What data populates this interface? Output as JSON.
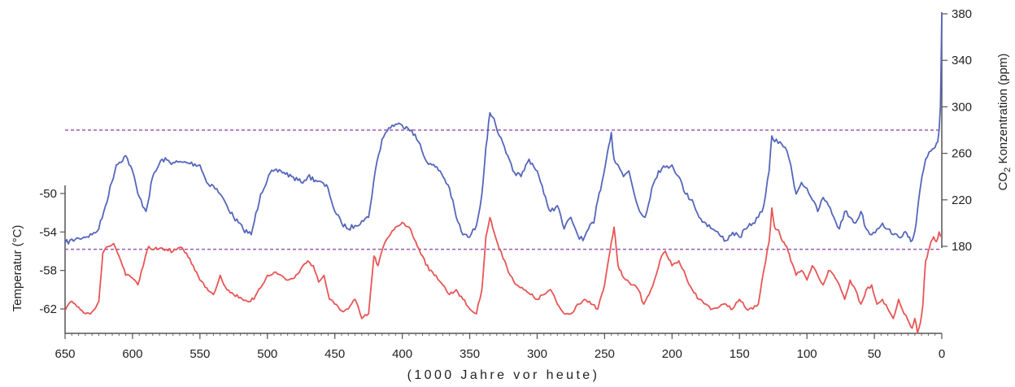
{
  "chart_data": {
    "type": "line",
    "title": "",
    "xlabel": "(1000 Jahre vor heute)",
    "x_range": [
      650,
      0
    ],
    "x_ticks": [
      650,
      600,
      550,
      500,
      450,
      400,
      350,
      300,
      250,
      200,
      150,
      100,
      50,
      0
    ],
    "left_axis": {
      "label": "Temperatur (°C)",
      "range": [
        -65,
        -50
      ],
      "ticks": [
        -50,
        -54,
        -58,
        -62
      ],
      "tick_labels": [
        "-50",
        "-54",
        "-58",
        "-62"
      ]
    },
    "right_axis": {
      "label_parts": [
        "CO",
        "2",
        " Konzentration (ppm)"
      ],
      "range": [
        180,
        380
      ],
      "ticks": [
        380,
        340,
        300,
        260,
        220,
        180
      ],
      "tick_labels": [
        "380",
        "340",
        "300",
        "260",
        "220",
        "180"
      ]
    },
    "reference_lines": {
      "co2_ppm": 280,
      "temperature_c": -55.8
    },
    "series": [
      {
        "axis": "right",
        "color": "#5566bb",
        "x": [
          650,
          640,
          630,
          625,
          620,
          612,
          605,
          600,
          596,
          590,
          585,
          578,
          570,
          560,
          550,
          545,
          540,
          535,
          530,
          525,
          518,
          512,
          505,
          498,
          490,
          482,
          475,
          470,
          462,
          455,
          450,
          445,
          440,
          435,
          430,
          425,
          420,
          415,
          410,
          405,
          400,
          397,
          393,
          388,
          383,
          378,
          372,
          365,
          360,
          355,
          350,
          345,
          341,
          338,
          335,
          332,
          328,
          323,
          318,
          312,
          306,
          300,
          295,
          290,
          285,
          280,
          275,
          270,
          266,
          262,
          258,
          255,
          252,
          248,
          245,
          243,
          240,
          236,
          232,
          228,
          224,
          220,
          215,
          210,
          205,
          200,
          195,
          190,
          185,
          180,
          175,
          170,
          165,
          160,
          155,
          150,
          145,
          140,
          136,
          132,
          128,
          126,
          124,
          120,
          116,
          112,
          108,
          104,
          100,
          96,
          92,
          88,
          84,
          80,
          76,
          72,
          68,
          64,
          60,
          56,
          52,
          48,
          44,
          40,
          36,
          32,
          28,
          25,
          22,
          19,
          16,
          12,
          8,
          5,
          3,
          2,
          1,
          0.5,
          0
        ],
        "y": [
          183,
          187,
          190,
          195,
          215,
          250,
          258,
          245,
          225,
          210,
          240,
          255,
          252,
          252,
          250,
          235,
          232,
          225,
          215,
          205,
          195,
          190,
          225,
          243,
          245,
          240,
          235,
          240,
          236,
          230,
          210,
          200,
          195,
          198,
          202,
          205,
          245,
          272,
          282,
          285,
          284,
          283,
          280,
          270,
          255,
          250,
          245,
          230,
          205,
          190,
          188,
          198,
          225,
          265,
          295,
          290,
          275,
          260,
          245,
          240,
          255,
          245,
          225,
          210,
          215,
          195,
          205,
          190,
          185,
          195,
          200,
          220,
          235,
          260,
          278,
          255,
          250,
          240,
          245,
          225,
          210,
          205,
          230,
          245,
          248,
          250,
          240,
          225,
          220,
          205,
          200,
          195,
          190,
          185,
          192,
          188,
          195,
          200,
          205,
          215,
          245,
          275,
          270,
          270,
          265,
          250,
          225,
          235,
          230,
          220,
          210,
          222,
          215,
          205,
          195,
          210,
          205,
          200,
          210,
          195,
          190,
          195,
          200,
          195,
          190,
          188,
          192,
          188,
          185,
          200,
          230,
          255,
          262,
          265,
          270,
          280,
          300,
          340,
          380
        ]
      },
      {
        "axis": "left",
        "color": "#e85555",
        "x": [
          650,
          645,
          640,
          635,
          630,
          625,
          622,
          618,
          614,
          610,
          605,
          600,
          596,
          592,
          588,
          584,
          580,
          575,
          570,
          565,
          560,
          555,
          550,
          545,
          540,
          535,
          530,
          525,
          520,
          515,
          510,
          505,
          500,
          495,
          490,
          485,
          480,
          475,
          470,
          466,
          462,
          458,
          454,
          450,
          445,
          440,
          435,
          430,
          425,
          421,
          418,
          414,
          410,
          405,
          400,
          395,
          390,
          385,
          380,
          375,
          370,
          365,
          360,
          355,
          350,
          345,
          341,
          338,
          335,
          332,
          328,
          324,
          320,
          315,
          310,
          305,
          300,
          295,
          290,
          285,
          280,
          275,
          270,
          265,
          260,
          255,
          250,
          246,
          243,
          240,
          237,
          233,
          229,
          225,
          221,
          217,
          213,
          209,
          205,
          200,
          195,
          190,
          185,
          180,
          175,
          170,
          165,
          160,
          155,
          150,
          145,
          140,
          136,
          132,
          128,
          126,
          124,
          121,
          118,
          115,
          112,
          108,
          104,
          100,
          96,
          92,
          88,
          84,
          80,
          76,
          72,
          68,
          64,
          60,
          56,
          52,
          48,
          44,
          40,
          36,
          32,
          28,
          24,
          22,
          20,
          18,
          16,
          14,
          12,
          10,
          8,
          6,
          4,
          2,
          0
        ],
        "y": [
          -62.2,
          -61.2,
          -61.8,
          -62.5,
          -62.3,
          -61.2,
          -56.2,
          -55.5,
          -55.2,
          -56.5,
          -58.5,
          -58.8,
          -59.5,
          -57.5,
          -55.5,
          -55.8,
          -55.7,
          -55.8,
          -56.0,
          -55.6,
          -56.2,
          -57.5,
          -59.0,
          -59.8,
          -60.5,
          -58.5,
          -60.0,
          -60.5,
          -60.8,
          -61.2,
          -61.0,
          -59.8,
          -58.5,
          -58.2,
          -58.5,
          -59.0,
          -58.8,
          -57.8,
          -57.0,
          -57.5,
          -59.2,
          -58.5,
          -61.0,
          -61.5,
          -62.2,
          -62.0,
          -61.0,
          -63.0,
          -62.5,
          -56.5,
          -57.5,
          -55.5,
          -54.5,
          -53.5,
          -53.0,
          -53.5,
          -55.0,
          -56.5,
          -58.0,
          -58.5,
          -59.5,
          -60.5,
          -60.0,
          -61.0,
          -62.0,
          -62.5,
          -60.0,
          -54.5,
          -52.5,
          -54.0,
          -55.8,
          -57.0,
          -58.5,
          -59.5,
          -60.0,
          -60.5,
          -61.0,
          -60.5,
          -60.0,
          -61.5,
          -62.5,
          -62.5,
          -61.5,
          -61.0,
          -61.5,
          -62.0,
          -59.5,
          -56.0,
          -53.5,
          -57.5,
          -58.5,
          -59.0,
          -59.5,
          -60.0,
          -61.5,
          -60.5,
          -59.0,
          -57.0,
          -56.0,
          -57.5,
          -57.0,
          -58.5,
          -60.0,
          -61.0,
          -61.5,
          -62.0,
          -61.8,
          -61.5,
          -62.0,
          -61.0,
          -62.0,
          -62.0,
          -61.5,
          -58.0,
          -55.0,
          -51.5,
          -53.5,
          -53.8,
          -55.0,
          -55.5,
          -57.0,
          -58.5,
          -58.0,
          -59.0,
          -57.5,
          -58.5,
          -59.5,
          -58.0,
          -58.5,
          -59.5,
          -61.0,
          -59.0,
          -60.0,
          -61.5,
          -60.0,
          -59.5,
          -61.5,
          -61.0,
          -62.0,
          -63.0,
          -61.0,
          -62.5,
          -63.5,
          -64.0,
          -63.0,
          -64.5,
          -63.5,
          -61.5,
          -57.0,
          -56.0,
          -55.0,
          -54.5,
          -55.0,
          -54.0,
          -54.5
        ]
      }
    ],
    "grid": false,
    "legend": "none"
  }
}
